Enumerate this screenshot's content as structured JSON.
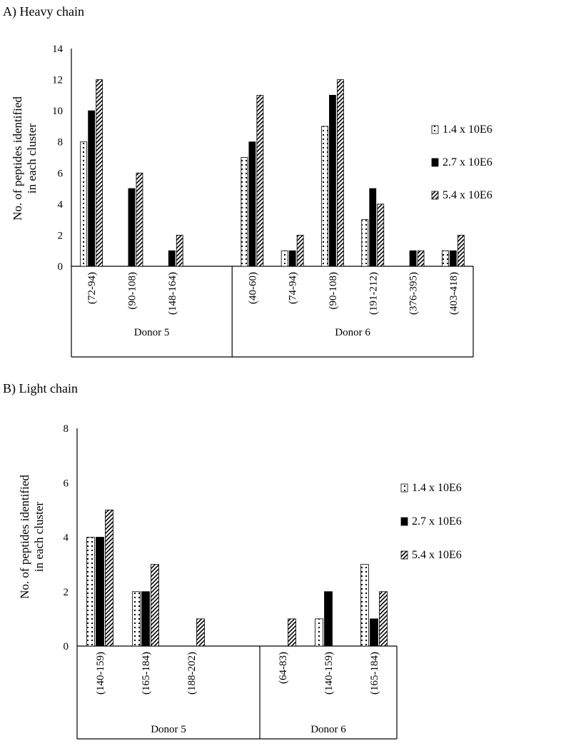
{
  "chart_data": [
    {
      "type": "bar",
      "title": "A) Heavy chain",
      "ylabel": [
        "No. of peptides identified",
        "in each cluster"
      ],
      "ylim": [
        0,
        14
      ],
      "yticks": [
        0,
        2,
        4,
        6,
        8,
        10,
        12,
        14
      ],
      "legend_position": "right",
      "groups": [
        {
          "name": "Donor 5",
          "categories": [
            "(72-94)",
            "(90-108)",
            "(148-164)"
          ],
          "empty_slots_after": 1
        },
        {
          "name": "Donor 6",
          "categories": [
            "(40-60)",
            "(74-94)",
            "(90-108)",
            "(191-212)",
            "(376-395)",
            "(403-418)"
          ],
          "empty_slots_after": 0
        }
      ],
      "series": [
        {
          "name": "1.4 x 10E6",
          "pattern": "dots",
          "values": [
            8,
            0,
            0,
            7,
            1,
            9,
            3,
            0,
            1
          ]
        },
        {
          "name": "2.7 x 10E6",
          "pattern": "solid",
          "values": [
            10,
            5,
            1,
            8,
            1,
            11,
            5,
            1,
            1
          ]
        },
        {
          "name": "5.4 x 10E6",
          "pattern": "hatch",
          "values": [
            12,
            6,
            2,
            11,
            2,
            12,
            4,
            1,
            2
          ]
        }
      ]
    },
    {
      "type": "bar",
      "title": "B) Light chain",
      "ylabel": [
        "No. of peptides identified",
        "in each cluster"
      ],
      "ylim": [
        0,
        8
      ],
      "yticks": [
        0,
        2,
        4,
        6,
        8
      ],
      "legend_position": "right",
      "groups": [
        {
          "name": "Donor 5",
          "categories": [
            "(140-159)",
            "(165-184)",
            "(188-202)"
          ],
          "empty_slots_after": 1
        },
        {
          "name": "Donor 6",
          "categories": [
            "(64-83)",
            "(140-159)",
            "(165-184)"
          ],
          "empty_slots_after": 0
        }
      ],
      "series": [
        {
          "name": "1.4 x 10E6",
          "pattern": "dots",
          "values": [
            4,
            2,
            0,
            0,
            1,
            3
          ]
        },
        {
          "name": "2.7 x 10E6",
          "pattern": "solid",
          "values": [
            4,
            2,
            0,
            0,
            2,
            1
          ]
        },
        {
          "name": "5.4 x 10E6",
          "pattern": "hatch",
          "values": [
            5,
            3,
            1,
            1,
            0,
            2
          ]
        }
      ]
    }
  ]
}
